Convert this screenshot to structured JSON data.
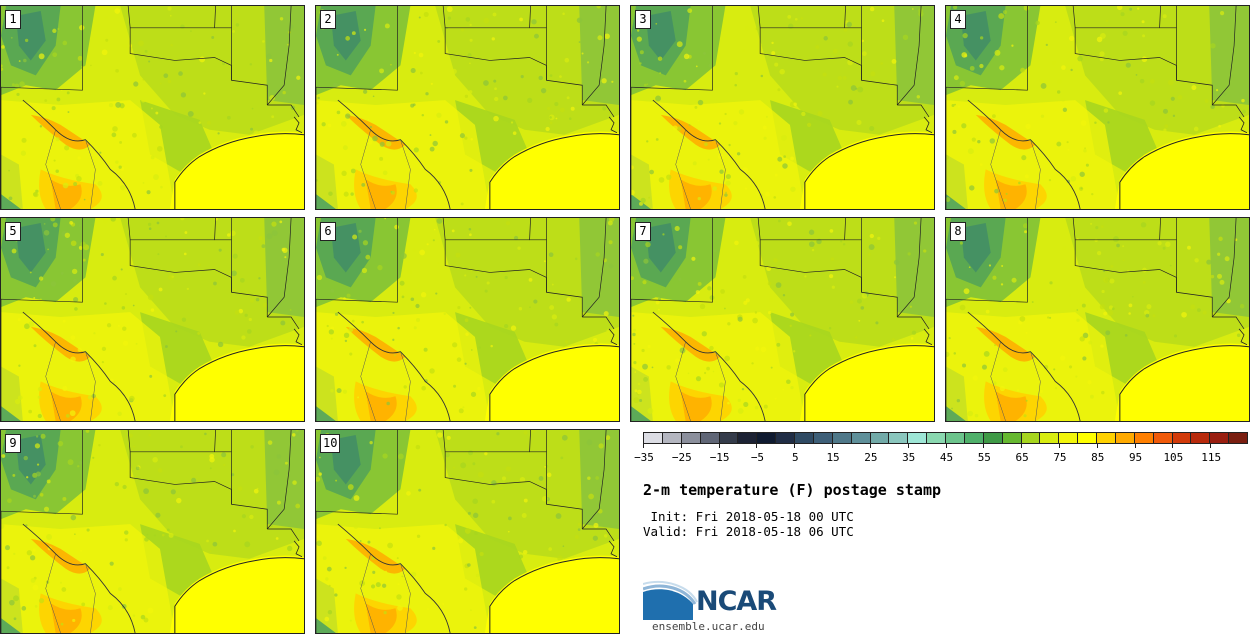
{
  "panels": [
    {
      "label": "1"
    },
    {
      "label": "2"
    },
    {
      "label": "3"
    },
    {
      "label": "4"
    },
    {
      "label": "5"
    },
    {
      "label": "6"
    },
    {
      "label": "7"
    },
    {
      "label": "8"
    },
    {
      "label": "9"
    },
    {
      "label": "10"
    }
  ],
  "colorbar": {
    "colors": [
      "#dcdde4",
      "#b4b6c0",
      "#8b8f9c",
      "#606676",
      "#343b4a",
      "#1c2234",
      "#0f1a30",
      "#202d45",
      "#2f4a63",
      "#3e5f78",
      "#4f7889",
      "#5f909a",
      "#72aaa8",
      "#8ac6bd",
      "#9ee6d6",
      "#8ad8b0",
      "#6cc48c",
      "#4fb06a",
      "#3f9a46",
      "#66b830",
      "#a7d61f",
      "#d8ec10",
      "#f2f50b",
      "#ffff00",
      "#ffd100",
      "#ffaa00",
      "#ff7f00",
      "#f05a0a",
      "#d23a0a",
      "#b82a0c",
      "#9a1e10",
      "#7a1e10"
    ],
    "tick_labels": [
      "−35",
      "−25",
      "−15",
      "−5",
      "5",
      "15",
      "25",
      "35",
      "45",
      "55",
      "65",
      "75",
      "85",
      "95",
      "105",
      "115"
    ]
  },
  "title": "2-m temperature (F) postage stamp",
  "init_text": " Init: Fri 2018-05-18 00 UTC",
  "valid_text": "Valid: Fri 2018-05-18 06 UTC",
  "logo": {
    "name": "NCAR",
    "url": "ensemble.ucar.edu"
  }
}
